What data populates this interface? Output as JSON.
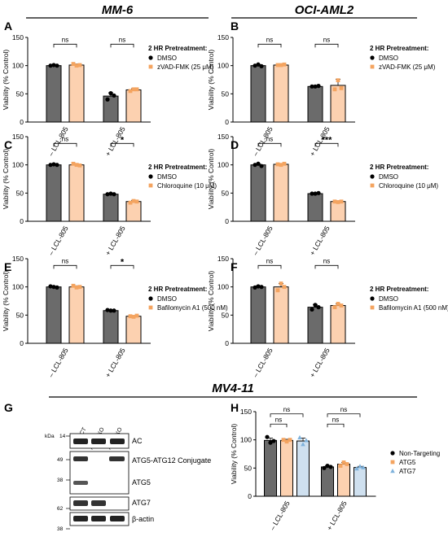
{
  "figure": {
    "headers": {
      "mm6": "MM-6",
      "oci": "OCI-AML2",
      "mv4": "MV4-11"
    },
    "colors": {
      "dmso_bar": "#6b6b6b",
      "treat_bar": "#fcd1b0",
      "treat_marker": "#f4a460",
      "atg7_bar": "#cfe0ef",
      "atg7_marker": "#7fb2dc"
    }
  },
  "chart_data": [
    {
      "id": "A",
      "type": "bar",
      "panel_label": "A",
      "categories": [
        "– LCL-805",
        "+ LCL-805"
      ],
      "ylabel": "Viability (% Control)",
      "ylim": [
        0,
        150
      ],
      "yticks": [
        0,
        50,
        100,
        150
      ],
      "legend_title": "2 HR Pretreatment:",
      "series": [
        {
          "name": "DMSO",
          "values": [
            100,
            46
          ],
          "errors": [
            1.5,
            6
          ],
          "points": [
            [
              100,
              101,
              100
            ],
            [
              40,
              51,
              47
            ]
          ],
          "bar": "#6b6b6b",
          "marker": "circle",
          "mcolor": "#000000"
        },
        {
          "name": "zVAD-FMK (25 μM)",
          "values": [
            101,
            57
          ],
          "errors": [
            2,
            2
          ],
          "points": [
            [
              103,
              100,
              101
            ],
            [
              55,
              58,
              58
            ]
          ],
          "bar": "#fcd1b0",
          "marker": "square",
          "mcolor": "#f4a460"
        }
      ],
      "significance": [
        "ns",
        "ns"
      ]
    },
    {
      "id": "B",
      "type": "bar",
      "panel_label": "B",
      "categories": [
        "– LCL-805",
        "+ LCL-805"
      ],
      "ylabel": "Viability (% Control)",
      "ylim": [
        0,
        150
      ],
      "yticks": [
        0,
        50,
        100,
        150
      ],
      "legend_title": "2 HR Pretreatment:",
      "series": [
        {
          "name": "DMSO",
          "values": [
            100,
            63
          ],
          "errors": [
            2,
            1
          ],
          "points": [
            [
              100,
              102,
              99
            ],
            [
              63,
              63,
              64
            ]
          ],
          "bar": "#6b6b6b",
          "marker": "circle",
          "mcolor": "#000000"
        },
        {
          "name": "zVAD-FMK (25 μM)",
          "values": [
            101,
            65
          ],
          "errors": [
            1,
            11
          ],
          "points": [
            [
              101,
              101,
              102
            ],
            [
              58,
              74,
              60
            ]
          ],
          "bar": "#fcd1b0",
          "marker": "square",
          "mcolor": "#f4a460"
        }
      ],
      "significance": [
        "ns",
        "ns"
      ]
    },
    {
      "id": "C",
      "type": "bar",
      "panel_label": "C",
      "categories": [
        "– LCL-805",
        "+ LCL-805"
      ],
      "ylabel": "Viability (% Control)",
      "ylim": [
        0,
        150
      ],
      "yticks": [
        0,
        50,
        100,
        150
      ],
      "legend_title": "2 HR Pretreatment:",
      "series": [
        {
          "name": "DMSO",
          "values": [
            100,
            48
          ],
          "errors": [
            1,
            1
          ],
          "points": [
            [
              100,
              101,
              100
            ],
            [
              48,
              49,
              48
            ]
          ],
          "bar": "#6b6b6b",
          "marker": "circle",
          "mcolor": "#000000"
        },
        {
          "name": "Chloroquine (10 μM)",
          "values": [
            100,
            35
          ],
          "errors": [
            2,
            2
          ],
          "points": [
            [
              102,
              100,
              99
            ],
            [
              33,
              36,
              35
            ]
          ],
          "bar": "#fcd1b0",
          "marker": "square",
          "mcolor": "#f4a460"
        }
      ],
      "significance": [
        "ns",
        "*"
      ]
    },
    {
      "id": "D",
      "type": "bar",
      "panel_label": "D",
      "categories": [
        "– LCL-805",
        "+ LCL-805"
      ],
      "ylabel": "Viability (% Control)",
      "ylim": [
        0,
        150
      ],
      "yticks": [
        0,
        50,
        100,
        150
      ],
      "legend_title": "2 HR Pretreatment:",
      "series": [
        {
          "name": "DMSO",
          "values": [
            100,
            49
          ],
          "errors": [
            2,
            1
          ],
          "points": [
            [
              100,
              102,
              98
            ],
            [
              49,
              49,
              50
            ]
          ],
          "bar": "#6b6b6b",
          "marker": "circle",
          "mcolor": "#000000"
        },
        {
          "name": "Chloroquine (10 μM)",
          "values": [
            101,
            35
          ],
          "errors": [
            1,
            1
          ],
          "points": [
            [
              101,
              100,
              102
            ],
            [
              35,
              34,
              35
            ]
          ],
          "bar": "#fcd1b0",
          "marker": "square",
          "mcolor": "#f4a460"
        }
      ],
      "significance": [
        "ns",
        "***"
      ]
    },
    {
      "id": "E",
      "type": "bar",
      "panel_label": "E",
      "categories": [
        "– LCL-805",
        "+ LCL-805"
      ],
      "ylabel": "Viability (% Control)",
      "ylim": [
        0,
        150
      ],
      "yticks": [
        0,
        50,
        100,
        150
      ],
      "legend_title": "2 HR Pretreatment:",
      "series": [
        {
          "name": "DMSO",
          "values": [
            100,
            58
          ],
          "errors": [
            1,
            1
          ],
          "points": [
            [
              101,
              100,
              99
            ],
            [
              59,
              58,
              58
            ]
          ],
          "bar": "#6b6b6b",
          "marker": "circle",
          "mcolor": "#000000"
        },
        {
          "name": "Bafilomycin A1 (500 nM)",
          "values": [
            100,
            48
          ],
          "errors": [
            2,
            1
          ],
          "points": [
            [
              102,
              99,
              100
            ],
            [
              48,
              47,
              49
            ]
          ],
          "bar": "#fcd1b0",
          "marker": "square",
          "mcolor": "#f4a460"
        }
      ],
      "significance": [
        "ns",
        "*"
      ]
    },
    {
      "id": "F",
      "type": "bar",
      "panel_label": "F",
      "categories": [
        "– LCL-805",
        "+ LCL-805"
      ],
      "ylabel": "Viability (% Control)",
      "ylim": [
        0,
        150
      ],
      "yticks": [
        0,
        50,
        100,
        150
      ],
      "legend_title": "2 HR Pretreatment:",
      "series": [
        {
          "name": "DMSO",
          "values": [
            100,
            64
          ],
          "errors": [
            2,
            5
          ],
          "points": [
            [
              99,
              101,
              100
            ],
            [
              60,
              68,
              64
            ]
          ],
          "bar": "#6b6b6b",
          "marker": "circle",
          "mcolor": "#000000"
        },
        {
          "name": "Bafilomycin A1 (500 nM)",
          "values": [
            100,
            67
          ],
          "errors": [
            6,
            3
          ],
          "points": [
            [
              94,
              106,
              100
            ],
            [
              64,
              70,
              67
            ]
          ],
          "bar": "#fcd1b0",
          "marker": "square",
          "mcolor": "#f4a460"
        }
      ],
      "significance": [
        "ns",
        "ns"
      ]
    },
    {
      "id": "H",
      "type": "bar",
      "panel_label": "H",
      "categories": [
        "– LCL-805",
        "+ LCL-805"
      ],
      "ylabel": "Viability (% Control)",
      "ylim": [
        0,
        150
      ],
      "yticks": [
        0,
        50,
        100,
        150
      ],
      "legend_title": "",
      "series": [
        {
          "name": "Non-Targeting",
          "values": [
            99,
            52
          ],
          "errors": [
            4,
            2
          ],
          "points": [
            [
              105,
              95,
              98
            ],
            [
              50,
              54,
              52
            ]
          ],
          "bar": "#6b6b6b",
          "marker": "circle",
          "mcolor": "#000000"
        },
        {
          "name": "ATG5",
          "values": [
            99,
            57
          ],
          "errors": [
            2,
            3
          ],
          "points": [
            [
              100,
              97,
              100
            ],
            [
              54,
              60,
              57
            ]
          ],
          "bar": "#fcd1b0",
          "marker": "square",
          "mcolor": "#f4a460"
        },
        {
          "name": "ATG7",
          "values": [
            98,
            51
          ],
          "errors": [
            5,
            2
          ],
          "points": [
            [
              104,
              92,
              99
            ],
            [
              49,
              53,
              51
            ]
          ],
          "bar": "#cfe0ef",
          "marker": "triangle",
          "mcolor": "#7fb2dc"
        }
      ],
      "significance": [
        [
          "ns",
          "ns"
        ],
        [
          "ns",
          "ns"
        ]
      ]
    }
  ],
  "blot": {
    "panel_label": "G",
    "lanes": [
      "NT CT",
      "ATG5 KO",
      "ATG7 KO"
    ],
    "kda_unit": "kDa",
    "rows": [
      {
        "markers": [
          "14"
        ],
        "label": "AC"
      },
      {
        "markers": [
          "49",
          "38"
        ],
        "label": "ATG5-ATG12 Conjugate",
        "label2": "ATG5"
      },
      {
        "markers": [
          "62"
        ],
        "label": "ATG7"
      },
      {
        "markers": [
          "38"
        ],
        "label": "β-actin"
      }
    ]
  }
}
